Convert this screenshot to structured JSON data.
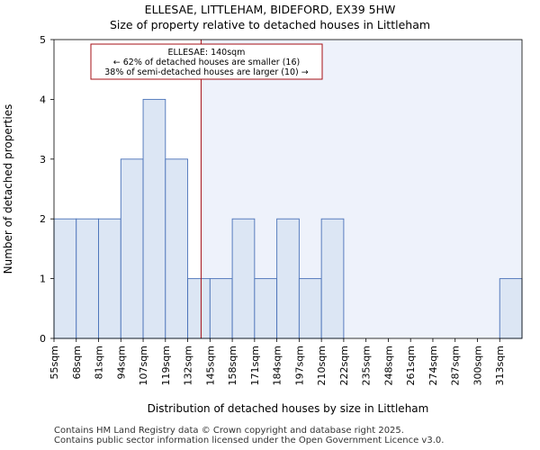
{
  "chart_data": {
    "type": "bar",
    "title_line1": "ELLESAE, LITTLEHAM, BIDEFORD, EX39 5HW",
    "title_line2": "Size of property relative to detached houses in Littleham",
    "xlabel": "Distribution of detached houses by size in Littleham",
    "ylabel": "Number of detached properties",
    "categories": [
      "55sqm",
      "68sqm",
      "81sqm",
      "94sqm",
      "107sqm",
      "119sqm",
      "132sqm",
      "145sqm",
      "158sqm",
      "171sqm",
      "184sqm",
      "197sqm",
      "210sqm",
      "222sqm",
      "235sqm",
      "248sqm",
      "261sqm",
      "274sqm",
      "287sqm",
      "300sqm",
      "313sqm"
    ],
    "values": [
      2,
      2,
      2,
      3,
      4,
      3,
      1,
      1,
      2,
      1,
      2,
      1,
      2,
      0,
      0,
      0,
      0,
      0,
      0,
      0,
      1
    ],
    "ylim": [
      0,
      5
    ],
    "yticks": [
      0,
      1,
      2,
      3,
      4,
      5
    ],
    "marker": {
      "value_sqm": 140,
      "position_bin": 6.6
    },
    "annotation": {
      "line1": "ELLESAE: 140sqm",
      "line2": "← 62% of detached houses are smaller (16)",
      "line3": "38% of semi-detached houses are larger (10) →"
    },
    "colors": {
      "bar_fill": "#dce6f4",
      "bar_edge": "#4a72b8",
      "highlight_bg": "#eef2fb",
      "marker": "#a50f15",
      "axis": "#000000"
    }
  },
  "footer": {
    "line1": "Contains HM Land Registry data © Crown copyright and database right 2025.",
    "line2": "Contains public sector information licensed under the Open Government Licence v3.0."
  }
}
